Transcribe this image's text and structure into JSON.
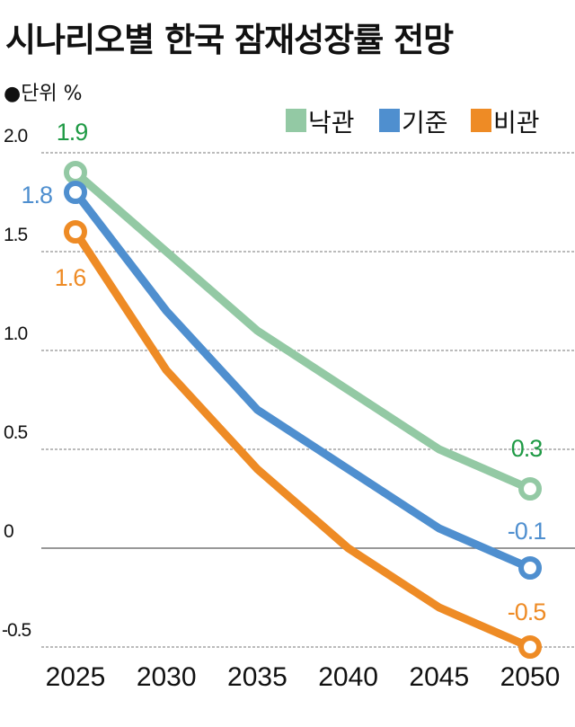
{
  "title": "시나리오별 한국 잠재성장률 전망",
  "unit": "●단위 %",
  "chart_data": {
    "type": "line",
    "title": "시나리오별 한국 잠재성장률 전망",
    "ylabel": "●단위 %",
    "categories": [
      "2025",
      "2030",
      "2035",
      "2040",
      "2045",
      "2050"
    ],
    "yticks": [
      "2.0",
      "1.5",
      "1.0",
      "0.5",
      "0",
      "-0.5"
    ],
    "ylim": [
      -0.5,
      2.0
    ],
    "grid": true,
    "legend": "top-right",
    "series": [
      {
        "name": "낙관",
        "color": "#93c9a4",
        "label_color": "#1f9a45",
        "values": [
          1.9,
          1.5,
          1.1,
          0.8,
          0.5,
          0.3
        ],
        "first_label": "1.9",
        "last_label": "0.3"
      },
      {
        "name": "기준",
        "color": "#4f8fcf",
        "label_color": "#4f8fcf",
        "values": [
          1.8,
          1.2,
          0.7,
          0.4,
          0.1,
          -0.1
        ],
        "first_label": "1.8",
        "last_label": "-0.1"
      },
      {
        "name": "비관",
        "color": "#ee8b25",
        "label_color": "#ee8b25",
        "values": [
          1.6,
          0.9,
          0.4,
          0.0,
          -0.3,
          -0.5
        ],
        "first_label": "1.6",
        "last_label": "-0.5"
      }
    ]
  }
}
